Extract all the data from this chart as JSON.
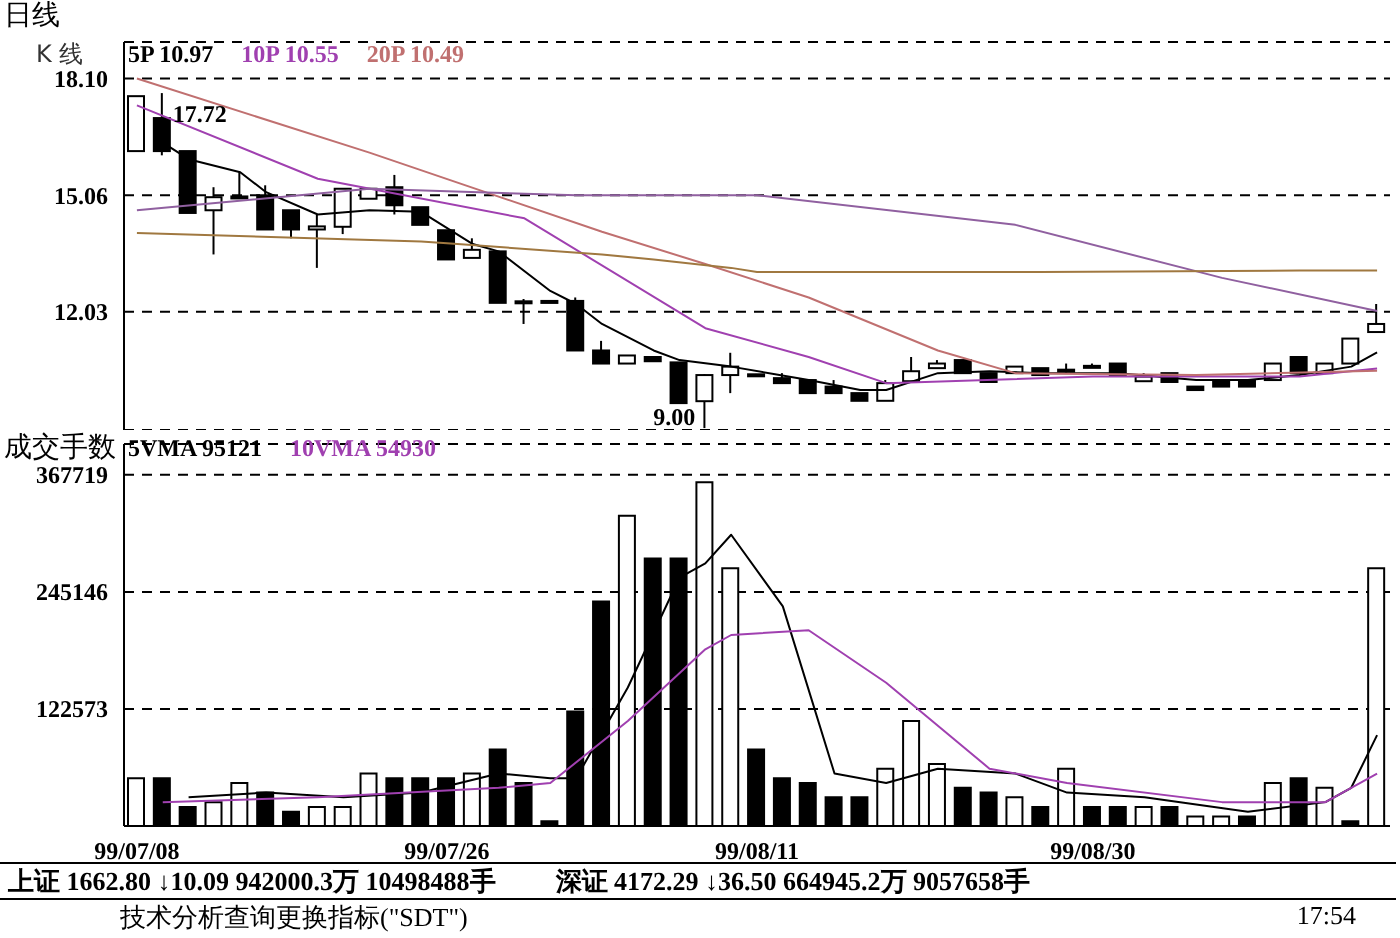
{
  "chart_data": [
    {
      "type": "candlestick",
      "title": "日线",
      "ylabel": "K 线",
      "color": "#000000",
      "legend": "top left",
      "grid": "y",
      "marker": "none",
      "tick_labels": "y",
      "ohlc": [
        [
          16.21,
          17.64,
          16.21,
          17.64
        ],
        [
          17.07,
          17.72,
          16.1,
          16.21
        ],
        [
          16.21,
          16.21,
          14.6,
          14.6
        ],
        [
          14.67,
          15.27,
          13.52,
          15.01
        ],
        [
          14.98,
          15.66,
          14.98,
          15.03
        ],
        [
          15.06,
          15.32,
          14.17,
          14.17
        ],
        [
          14.67,
          14.67,
          13.94,
          14.17
        ],
        [
          14.17,
          14.55,
          13.17,
          14.25
        ],
        [
          14.24,
          15.23,
          14.05,
          15.23
        ],
        [
          14.97,
          15.23,
          14.97,
          15.23
        ],
        [
          15.27,
          15.59,
          14.56,
          14.8
        ],
        [
          14.75,
          14.75,
          14.29,
          14.29
        ],
        [
          14.15,
          14.15,
          13.39,
          13.39
        ],
        [
          13.43,
          13.94,
          13.43,
          13.64
        ],
        [
          13.6,
          13.6,
          12.26,
          12.26
        ],
        [
          12.3,
          12.36,
          11.71,
          12.28
        ],
        [
          12.29,
          12.33,
          12.27,
          12.31
        ],
        [
          12.31,
          12.4,
          11.02,
          11.02
        ],
        [
          11.02,
          11.27,
          10.68,
          10.68
        ],
        [
          10.68,
          10.89,
          10.68,
          10.89
        ],
        [
          10.85,
          10.85,
          10.74,
          10.74
        ],
        [
          10.71,
          10.71,
          9.65,
          9.65
        ],
        [
          9.7,
          10.4,
          9.0,
          10.38
        ],
        [
          10.38,
          10.96,
          9.91,
          10.6
        ],
        [
          10.4,
          10.41,
          10.36,
          10.38
        ],
        [
          10.3,
          10.43,
          10.17,
          10.17
        ],
        [
          10.25,
          10.25,
          9.91,
          9.91
        ],
        [
          10.08,
          10.25,
          9.91,
          9.91
        ],
        [
          9.91,
          9.91,
          9.71,
          9.71
        ],
        [
          9.71,
          10.25,
          9.71,
          10.17
        ],
        [
          10.22,
          10.85,
          10.22,
          10.48
        ],
        [
          10.56,
          10.77,
          10.56,
          10.68
        ],
        [
          10.77,
          10.77,
          10.43,
          10.43
        ],
        [
          10.43,
          10.43,
          10.2,
          10.2
        ],
        [
          10.43,
          10.6,
          10.43,
          10.6
        ],
        [
          10.56,
          10.56,
          10.38,
          10.38
        ],
        [
          10.48,
          10.68,
          10.43,
          10.52
        ],
        [
          10.62,
          10.68,
          10.6,
          10.6
        ],
        [
          10.68,
          10.68,
          10.38,
          10.38
        ],
        [
          10.22,
          10.43,
          10.22,
          10.34
        ],
        [
          10.43,
          10.43,
          10.2,
          10.2
        ],
        [
          10.08,
          10.08,
          9.99,
          9.99
        ],
        [
          10.2,
          10.25,
          10.08,
          10.08
        ],
        [
          10.25,
          10.25,
          10.08,
          10.08
        ],
        [
          10.25,
          10.68,
          10.25,
          10.68
        ],
        [
          10.85,
          10.85,
          10.43,
          10.43
        ],
        [
          10.43,
          10.68,
          10.43,
          10.68
        ],
        [
          10.68,
          11.33,
          10.68,
          11.33
        ],
        [
          11.5,
          12.23,
          11.5,
          11.71
        ]
      ],
      "series": [
        {
          "type": "line",
          "name": "5P 10.97",
          "color": "#000000",
          "values": [
            null,
            16.43,
            16.0,
            null,
            15.66,
            15.14,
            null,
            14.56,
            null,
            14.67,
            null,
            14.63,
            null,
            13.79,
            13.6,
            null,
            12.57,
            12.23,
            11.71,
            null,
            11.02,
            10.77,
            null,
            10.6,
            null,
            null,
            10.25,
            null,
            9.99,
            9.99,
            null,
            10.43,
            null,
            10.48,
            null,
            10.43,
            null,
            null,
            10.43,
            null,
            null,
            10.25,
            null,
            10.25,
            null,
            10.38,
            null,
            10.6,
            10.97
          ]
        },
        {
          "type": "line",
          "name": "10P 10.55",
          "color": "#a040b0",
          "values": [
            17.4,
            null,
            null,
            null,
            null,
            null,
            null,
            15.49,
            null,
            null,
            null,
            null,
            null,
            null,
            null,
            14.46,
            null,
            null,
            null,
            null,
            null,
            null,
            11.6,
            null,
            null,
            null,
            10.85,
            null,
            null,
            10.17,
            null,
            null,
            null,
            null,
            null,
            null,
            null,
            10.34,
            null,
            null,
            null,
            null,
            null,
            null,
            null,
            10.34,
            null,
            null,
            10.55
          ]
        },
        {
          "type": "line",
          "name": "20P 10.49",
          "color": "#c07070",
          "values": [
            18.1,
            null,
            null,
            null,
            null,
            null,
            null,
            null,
            null,
            16.17,
            null,
            null,
            null,
            null,
            null,
            null,
            null,
            null,
            14.11,
            null,
            null,
            null,
            13.27,
            null,
            null,
            null,
            12.4,
            null,
            null,
            null,
            null,
            11.02,
            null,
            null,
            10.43,
            null,
            null,
            null,
            null,
            null,
            null,
            10.38,
            null,
            null,
            null,
            null,
            null,
            null,
            10.49
          ]
        },
        {
          "type": "line",
          "color": "#9060a0",
          "values": [
            14.67,
            null,
            null,
            null,
            null,
            null,
            null,
            null,
            null,
            15.23,
            null,
            null,
            null,
            null,
            null,
            null,
            null,
            15.06,
            null,
            null,
            null,
            null,
            null,
            null,
            15.06,
            null,
            null,
            null,
            null,
            null,
            null,
            null,
            null,
            null,
            14.29,
            null,
            null,
            null,
            null,
            null,
            null,
            null,
            12.91,
            null,
            null,
            null,
            null,
            null,
            12.05
          ]
        },
        {
          "type": "line",
          "color": "#a07840",
          "values": [
            14.08,
            null,
            null,
            null,
            null,
            null,
            null,
            null,
            null,
            null,
            null,
            13.86,
            13.81,
            null,
            null,
            null,
            null,
            null,
            13.52,
            null,
            13.39,
            null,
            null,
            13.17,
            13.06,
            null,
            null,
            null,
            null,
            null,
            null,
            null,
            null,
            null,
            null,
            13.06,
            null,
            null,
            null,
            null,
            null,
            null,
            null,
            null,
            null,
            13.1,
            null,
            null,
            13.1
          ]
        }
      ],
      "ylim": [
        8.95,
        19.05
      ],
      "yticks": [
        {
          "value": 18.1,
          "label": "18.10"
        },
        15.06,
        12.03
      ],
      "annotations": [
        "17.72",
        "9.00"
      ]
    },
    {
      "type": "bar",
      "title": "成交手数",
      "legend": "top left",
      "grid": "y",
      "marker": "none",
      "categories": [
        "99/07/08",
        null,
        null,
        null,
        null,
        null,
        null,
        null,
        null,
        null,
        null,
        null,
        "99/07/26",
        null,
        null,
        null,
        null,
        null,
        null,
        null,
        null,
        null,
        null,
        null,
        "99/08/11",
        null,
        null,
        null,
        null,
        null,
        null,
        null,
        null,
        null,
        null,
        null,
        null,
        "99/08/30",
        null,
        null,
        null,
        null,
        null,
        null,
        null,
        null,
        null,
        null,
        null
      ],
      "series": [
        {
          "type": "bar",
          "values": [
            50000,
            50000,
            20000,
            25000,
            45000,
            35000,
            15000,
            20000,
            20000,
            55000,
            50000,
            50000,
            50000,
            55000,
            80000,
            45000,
            5000,
            120000,
            235000,
            325000,
            280000,
            280000,
            360000,
            270000,
            80000,
            50000,
            45000,
            30000,
            30000,
            60000,
            110000,
            65000,
            40000,
            35000,
            30000,
            20000,
            60000,
            20000,
            20000,
            20000,
            20000,
            10000,
            10000,
            10000,
            45000,
            50000,
            40000,
            5000,
            270000
          ],
          "colors": [
            "#ffffff",
            "#000000",
            "#000000",
            "#ffffff",
            "#ffffff",
            "#000000",
            "#000000",
            "#ffffff",
            "#ffffff",
            "#ffffff",
            "#000000",
            "#000000",
            "#000000",
            "#ffffff",
            "#000000",
            "#000000",
            "#000000",
            "#000000",
            "#000000",
            "#ffffff",
            "#000000",
            "#000000",
            "#ffffff",
            "#ffffff",
            "#000000",
            "#000000",
            "#000000",
            "#000000",
            "#000000",
            "#ffffff",
            "#ffffff",
            "#ffffff",
            "#000000",
            "#000000",
            "#ffffff",
            "#000000",
            "#ffffff",
            "#000000",
            "#000000",
            "#ffffff",
            "#000000",
            "#ffffff",
            "#ffffff",
            "#000000",
            "#ffffff",
            "#000000",
            "#ffffff",
            "#000000",
            "#ffffff"
          ]
        },
        {
          "type": "line",
          "name": "5VMA 95121",
          "color": "#000000",
          "values": [
            null,
            null,
            30000,
            null,
            null,
            35000,
            null,
            null,
            30000,
            null,
            null,
            35000,
            null,
            null,
            55000,
            null,
            50000,
            50000,
            null,
            145000,
            null,
            260000,
            275000,
            305000,
            null,
            230000,
            null,
            55000,
            null,
            45000,
            null,
            60000,
            null,
            null,
            55000,
            null,
            35000,
            null,
            null,
            30000,
            null,
            null,
            null,
            15000,
            null,
            null,
            25000,
            40000,
            95121
          ]
        },
        {
          "type": "line",
          "name": "10VMA 54930",
          "color": "#a040b0",
          "values": [
            null,
            25000,
            null,
            null,
            null,
            null,
            null,
            30000,
            null,
            null,
            null,
            null,
            null,
            null,
            40000,
            null,
            45000,
            null,
            null,
            110000,
            null,
            null,
            185000,
            200000,
            null,
            null,
            205000,
            null,
            null,
            150000,
            null,
            null,
            null,
            60000,
            null,
            null,
            45000,
            null,
            null,
            null,
            null,
            null,
            25000,
            null,
            null,
            null,
            25000,
            null,
            54930
          ]
        }
      ],
      "ylim": [
        0,
        400000
      ],
      "yticks": [
        122573,
        245146,
        367719
      ],
      "annotations": [
        "上证 1662.80 ↓10.09 942000.3万 10498488手",
        "深证 4172.29 ↓36.50 664945.2万 9057658手",
        "技术分析查询更换指标(\"SDT\")",
        "17:54"
      ]
    }
  ]
}
